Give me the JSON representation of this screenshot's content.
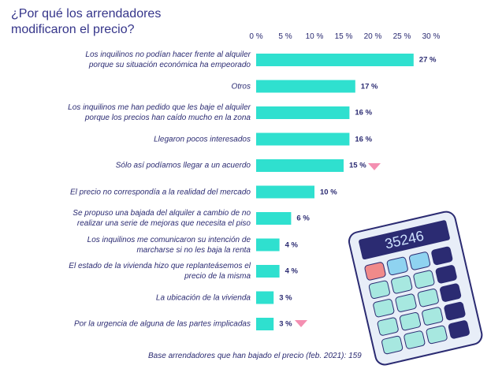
{
  "chart_data": {
    "type": "bar",
    "orientation": "horizontal",
    "title": "¿Por qué los arrendadores\nmodificaron el precio?",
    "categories": [
      "Los inquilinos no podían hacer frente al alquiler\nporque su situación económica ha empeorado",
      "Otros",
      "Los inquilinos me han pedido que les baje el alquiler\nporque los precios han caído mucho en la zona",
      "Llegaron pocos interesados",
      "Sólo así podíamos llegar a un acuerdo",
      "El precio no correspondía a la realidad del mercado",
      "Se propuso una bajada del alquiler a cambio de no\nrealizar una serie de mejoras que necesita el piso",
      "Los inquilinos me comunicaron su intención de\nmarcharse si no les baja la renta",
      "El estado de la vivienda hizo que replanteásemos el\nprecio de la misma",
      "La ubicación de la vivienda",
      "Por la urgencia de alguna de las partes implicadas"
    ],
    "values": [
      27,
      17,
      16,
      16,
      15,
      10,
      6,
      4,
      4,
      3,
      3
    ],
    "value_labels": [
      "27 %",
      "17 %",
      "16 %",
      "16 %",
      "15 %",
      "10 %",
      "6 %",
      "4 %",
      "4 %",
      "3 %",
      "3 %"
    ],
    "color": "#2fe0cf",
    "xlim": [
      0,
      30
    ],
    "xticks": [
      {
        "value": 0,
        "label": "0 %"
      },
      {
        "value": 5,
        "label": "5 %"
      },
      {
        "value": 10,
        "label": "10 %"
      },
      {
        "value": 15,
        "label": "15 %"
      },
      {
        "value": 20,
        "label": "20 %"
      },
      {
        "value": 25,
        "label": "25 %"
      },
      {
        "value": 30,
        "label": "30 %"
      }
    ],
    "grid": false,
    "footnote": "Base arrendadores que han bajado el precio (feb. 2021): 159"
  },
  "calculator": {
    "display": "35246"
  }
}
